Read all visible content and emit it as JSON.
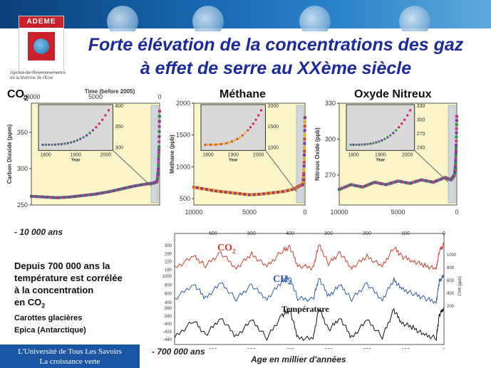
{
  "header": {
    "logo_text": "ADEME",
    "logo_caption": "Agence de l'Environnement et de la Maîtrise de l'Ener",
    "title_line1": "Forte élévation de la concentrations des gaz",
    "title_line2": "à effet de serre au XXème siècle"
  },
  "charts": {
    "co2": {
      "heading": "CO",
      "heading_sub": "2",
      "top_axis_label": "Time (before 2005)",
      "ylabel": "Carbon Dioxide (ppm)"
    },
    "ch4": {
      "heading": "Méthane",
      "ylabel": "Methane (ppb)"
    },
    "n2o": {
      "heading": "Oxyde Nitreux",
      "ylabel": "Nitrous Oxide (ppb)"
    }
  },
  "left_text": {
    "minus_10000": "- 10 000 ans",
    "line1": "Depuis 700 000 ans la",
    "line2": "température est corrélée",
    "line3": "à la concentration",
    "line4": "en CO",
    "line4_sub": "2",
    "line5": "Carottes glacières",
    "line6": "Epica (Antarctique)"
  },
  "vostok": {
    "co2_label": "CO",
    "co2_sub": "2",
    "ch4_label": "CH",
    "ch4_sub": "4",
    "temp_label": "Température",
    "ch4_axis_label": "CH4 (ppb)"
  },
  "footer": {
    "line1": "L'Université de Tous Les Savoirs",
    "line2": "La croissance verte",
    "minus_700000": "- 700 000 ans",
    "axis_label": "Age en millier d'années"
  },
  "chart_data": [
    {
      "type": "scatter",
      "title": "CO2",
      "xlabel": "Time (before 2005)",
      "ylabel": "Carbon Dioxide (ppm)",
      "xlim": [
        10000,
        0
      ],
      "ylim": [
        250,
        390
      ],
      "x_ticks": [
        10000,
        5000,
        0
      ],
      "y_ticks": [
        250,
        300,
        350
      ],
      "series": [
        {
          "x": [
            10000,
            9000,
            8000,
            7000,
            6000,
            5000,
            4000,
            3000,
            2000,
            1000,
            500,
            200,
            100,
            50,
            0
          ],
          "y": [
            262,
            261,
            260,
            261,
            263,
            265,
            268,
            272,
            276,
            279,
            280,
            282,
            300,
            330,
            379
          ]
        }
      ],
      "inset": {
        "x_ticks": [
          1800,
          1900,
          2000
        ],
        "xlabel": "Year",
        "y_ticks": [
          300,
          350,
          400
        ]
      }
    },
    {
      "type": "scatter",
      "title": "Méthane",
      "xlabel": "",
      "ylabel": "Methane (ppb)",
      "xlim": [
        10000,
        0
      ],
      "ylim": [
        400,
        2000
      ],
      "x_ticks": [
        10000,
        5000,
        0
      ],
      "y_ticks": [
        500,
        1000,
        1500,
        2000
      ],
      "series": [
        {
          "x": [
            10000,
            9000,
            8000,
            7000,
            6000,
            5000,
            4000,
            3000,
            2000,
            1000,
            500,
            200,
            100,
            50,
            0
          ],
          "y": [
            680,
            650,
            620,
            600,
            580,
            560,
            570,
            590,
            610,
            650,
            700,
            720,
            900,
            1300,
            1774
          ]
        }
      ],
      "inset": {
        "x_ticks": [
          1800,
          1900,
          2000
        ],
        "xlabel": "Year",
        "y_ticks": [
          1000,
          1500,
          2000
        ]
      }
    },
    {
      "type": "scatter",
      "title": "Oxyde Nitreux",
      "xlabel": "",
      "ylabel": "Nitrous Oxide (ppb)",
      "xlim": [
        10000,
        0
      ],
      "ylim": [
        245,
        330
      ],
      "x_ticks": [
        10000,
        5000,
        0
      ],
      "y_ticks": [
        270,
        300,
        330
      ],
      "series": [
        {
          "x": [
            10000,
            9000,
            8000,
            7000,
            6000,
            5000,
            4000,
            3000,
            2000,
            1000,
            500,
            200,
            100,
            50,
            0
          ],
          "y": [
            258,
            262,
            260,
            264,
            262,
            265,
            263,
            266,
            264,
            268,
            266,
            270,
            280,
            295,
            319
          ]
        }
      ],
      "inset": {
        "x_ticks": [
          1800,
          1900,
          2000
        ],
        "xlabel": "Year",
        "y_ticks": [
          240,
          270,
          300,
          330
        ]
      }
    },
    {
      "type": "line",
      "title": "",
      "xlabel": "Age en millier d'années",
      "ylabel": "",
      "xlim": [
        700,
        0
      ],
      "x_ticks": [
        600,
        500,
        400,
        300,
        200,
        100,
        0
      ],
      "series": [
        {
          "name": "CO2",
          "color": "#d63b2f",
          "y_ticks": [
            180,
            220,
            260,
            300
          ],
          "x": [
            700,
            650,
            620,
            580,
            540,
            500,
            460,
            420,
            400,
            380,
            340,
            325,
            300,
            270,
            240,
            200,
            160,
            130,
            110,
            80,
            50,
            20,
            12,
            0
          ],
          "y": [
            190,
            240,
            200,
            255,
            190,
            250,
            195,
            265,
            280,
            200,
            190,
            290,
            210,
            255,
            190,
            240,
            195,
            280,
            240,
            220,
            200,
            185,
            265,
            290
          ]
        },
        {
          "name": "CH4",
          "color": "#2f5aa8",
          "y_ticks": [
            400,
            600,
            800,
            1000
          ],
          "x": [
            700,
            650,
            620,
            580,
            540,
            500,
            460,
            420,
            400,
            380,
            340,
            325,
            300,
            270,
            240,
            200,
            160,
            130,
            110,
            80,
            50,
            20,
            12,
            0
          ],
          "y": [
            420,
            640,
            430,
            650,
            420,
            620,
            420,
            680,
            720,
            430,
            410,
            730,
            460,
            620,
            420,
            640,
            410,
            700,
            560,
            500,
            430,
            380,
            680,
            760
          ]
        },
        {
          "name": "Température",
          "color": "#111111",
          "y_ticks": [
            -440,
            -420,
            -400,
            -380,
            -360
          ],
          "x": [
            700,
            650,
            620,
            580,
            540,
            500,
            460,
            420,
            400,
            380,
            340,
            325,
            300,
            270,
            240,
            200,
            160,
            130,
            110,
            80,
            50,
            20,
            12,
            0
          ],
          "y": [
            -440,
            -405,
            -435,
            -400,
            -438,
            -405,
            -440,
            -395,
            -385,
            -440,
            -442,
            -380,
            -425,
            -400,
            -440,
            -405,
            -438,
            -385,
            -410,
            -420,
            -435,
            -440,
            -395,
            -380
          ]
        }
      ],
      "right_axis": {
        "y_ticks": [
          200,
          400,
          600,
          800,
          1000
        ]
      }
    }
  ]
}
